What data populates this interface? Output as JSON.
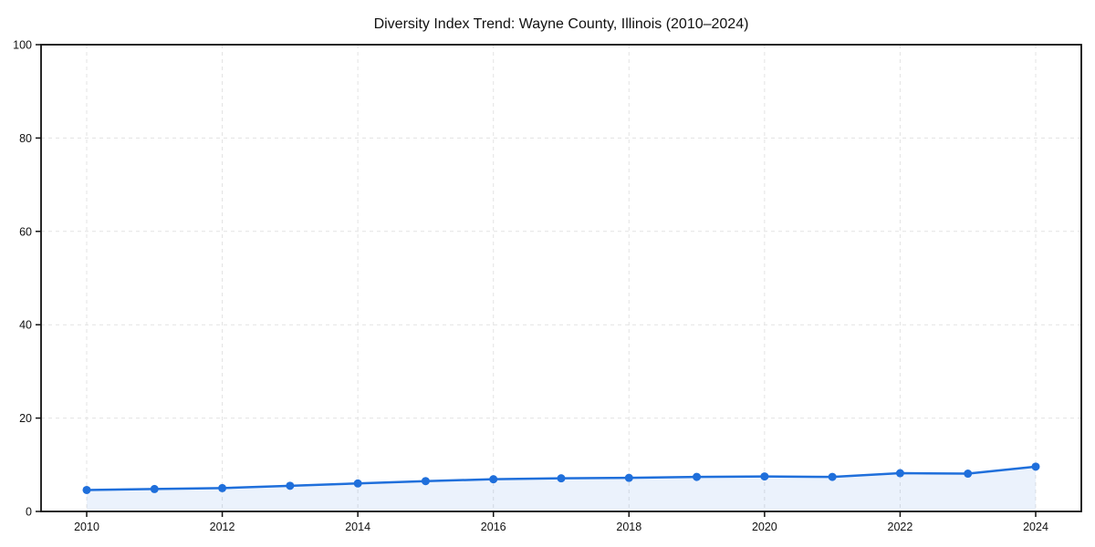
{
  "chart_data": {
    "type": "line",
    "title": "Diversity Index Trend: Wayne County, Illinois (2010–2024)",
    "x": [
      2010,
      2011,
      2012,
      2013,
      2014,
      2015,
      2016,
      2017,
      2018,
      2019,
      2020,
      2021,
      2022,
      2023,
      2024
    ],
    "values": [
      4.6,
      4.8,
      5.0,
      5.5,
      6.0,
      6.5,
      6.9,
      7.1,
      7.2,
      7.4,
      7.5,
      7.4,
      8.2,
      8.1,
      9.6
    ],
    "xlabel": "",
    "ylabel": "",
    "ylim": [
      0,
      100
    ],
    "yticks": [
      0,
      20,
      40,
      60,
      80,
      100
    ],
    "xticks": [
      2010,
      2012,
      2014,
      2016,
      2018,
      2020,
      2022,
      2024
    ],
    "grid": "dashed, behind data, at yticks and xticks",
    "legend": "none",
    "marker": "circle",
    "area_fill": true,
    "colors": {
      "line": "#1f6fdb",
      "marker": "#1f6fdb",
      "area_fill": "#1f6fdb",
      "area_fill_opacity": "0.09",
      "grid": "#e3e3e3",
      "spine": "#111111",
      "text": "#111111",
      "background": "#ffffff"
    }
  }
}
